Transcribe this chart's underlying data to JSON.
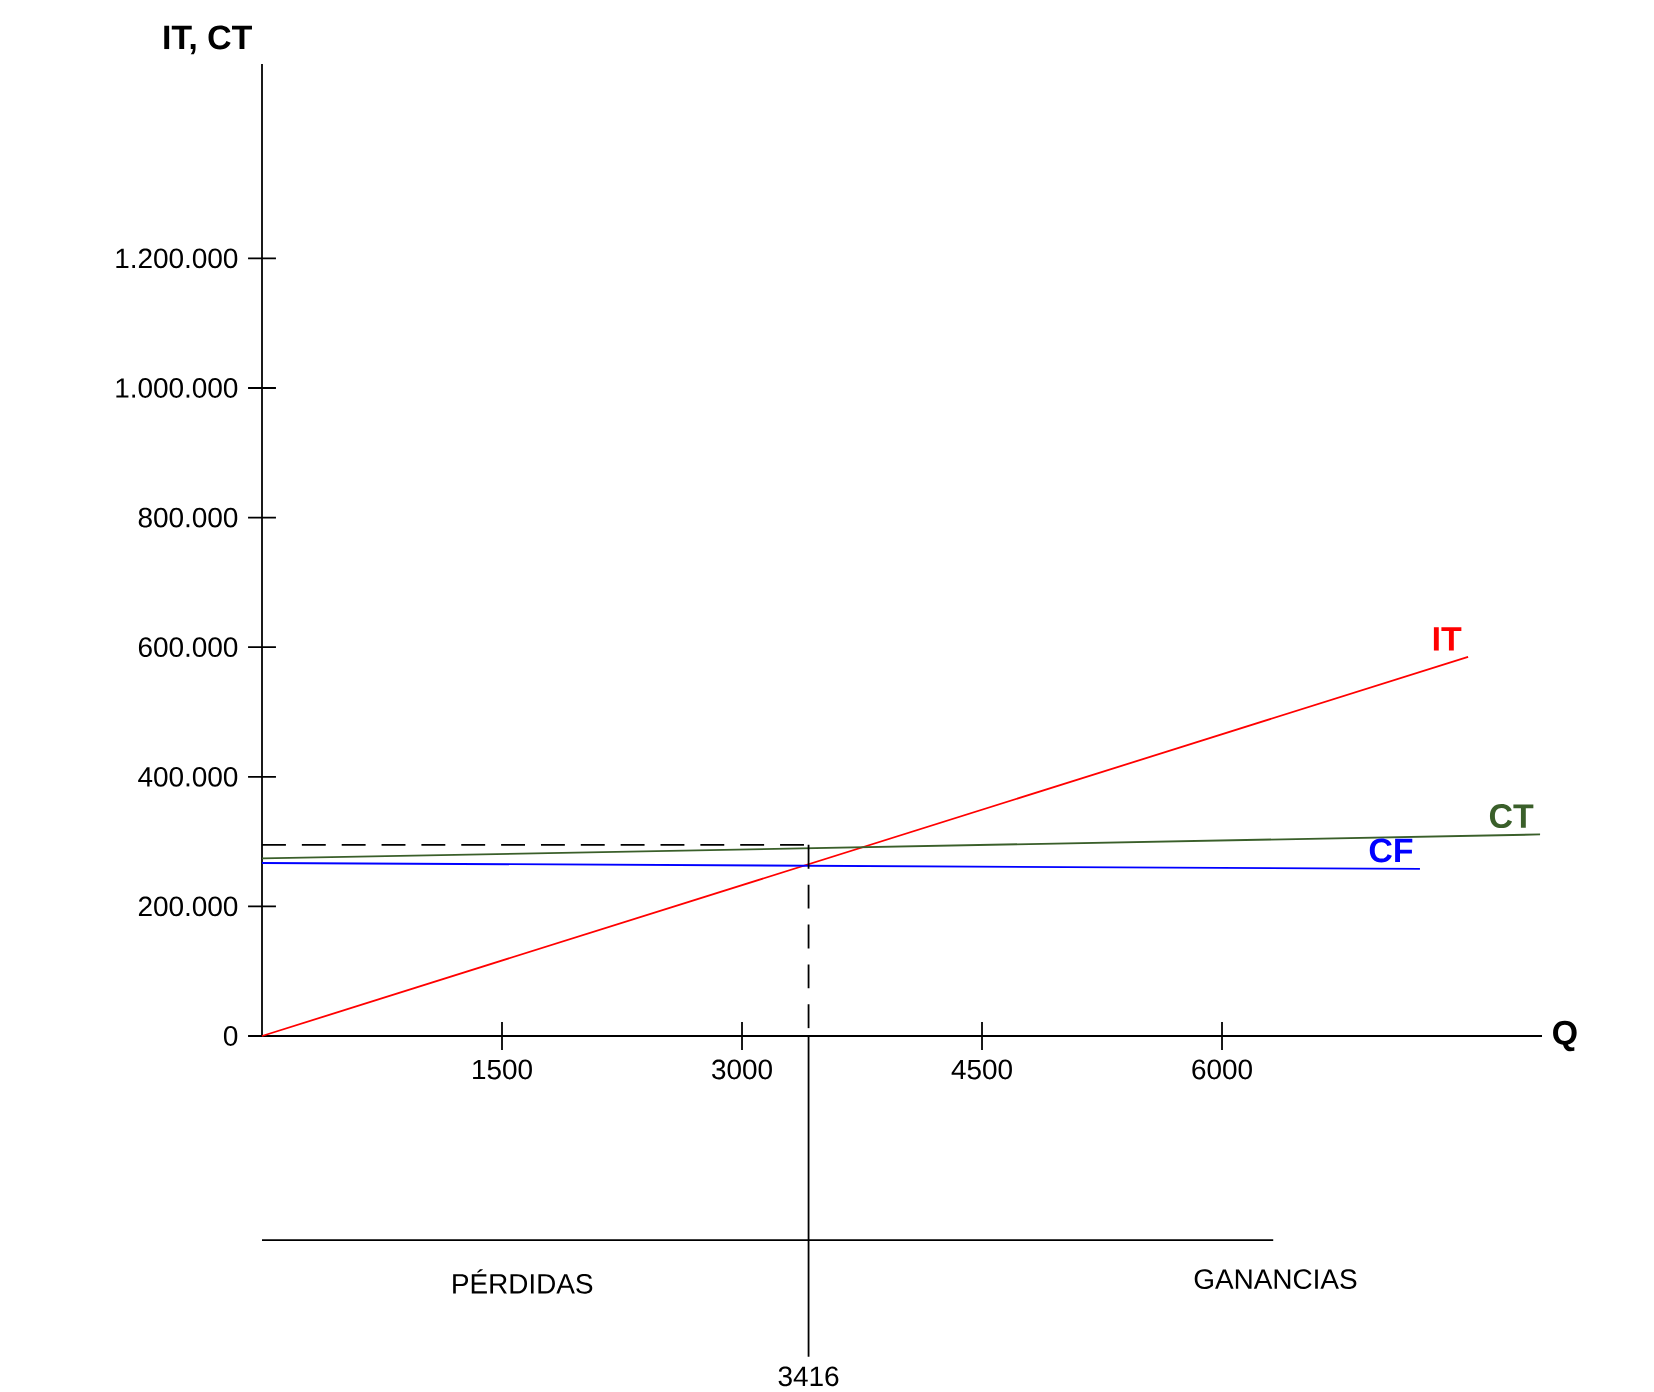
{
  "chart_data": {
    "type": "line",
    "xlabel": "Q",
    "ylabel": "IT, CT",
    "series": [
      {
        "name": "IT",
        "color": "#ff0000",
        "x": [
          0,
          7538
        ],
        "values": [
          0,
          585000
        ]
      },
      {
        "name": "CT",
        "color": "#3a5f2a",
        "x": [
          0,
          7988
        ],
        "values": [
          274000,
          311000
        ]
      },
      {
        "name": "CF",
        "color": "#0000ff",
        "x": [
          0,
          7237
        ],
        "values": [
          267000,
          258000
        ]
      }
    ],
    "xlim": [
      0,
      8000
    ],
    "ylim": [
      0,
      1500000
    ],
    "xticks": [
      1500,
      3000,
      4500,
      6000
    ],
    "yticks": [
      0,
      {
        "value": 200000,
        "label": "200.000"
      },
      {
        "value": 400000,
        "label": "400.000"
      },
      {
        "value": 600000,
        "label": "600.000"
      },
      {
        "value": 800000,
        "label": "800.000"
      },
      {
        "value": 1000000,
        "label": "1.000.000"
      },
      {
        "value": 1200000,
        "label": "1.200.000"
      }
    ],
    "ref_lines": [
      {
        "axis": "x",
        "value": 3416,
        "label": "3416",
        "line_style": "dashed",
        "color": "#000000"
      },
      {
        "axis": "y",
        "value": 295000,
        "line_style": "dashed",
        "color": "#000000"
      }
    ],
    "annotations": [
      "PÉRDIDAS",
      "GANANCIAS"
    ],
    "grid": false,
    "marker": "none",
    "line_style": "solid"
  }
}
